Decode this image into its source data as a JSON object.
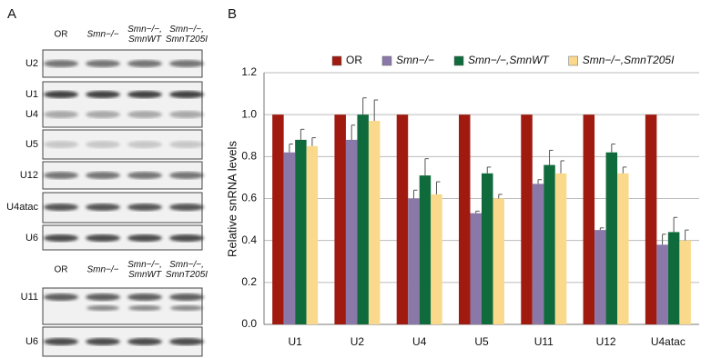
{
  "panel_a": {
    "label": "A",
    "blot_1": {
      "columns": [
        [
          "OR"
        ],
        [
          "Smn−/−"
        ],
        [
          "Smn−/−,",
          "SmnWT"
        ],
        [
          "Smn−/−,",
          "SmnT205I"
        ]
      ],
      "rows": [
        "U2",
        "U1",
        "U4",
        "U5",
        "U12",
        "U4atac",
        "U6"
      ]
    },
    "blot_2": {
      "columns": [
        [
          "OR"
        ],
        [
          "Smn−/−"
        ],
        [
          "Smn−/−,",
          "SmnWT"
        ],
        [
          "Smn−/−,",
          "SmnT205I"
        ]
      ],
      "rows": [
        "U11",
        "U6"
      ]
    }
  },
  "chart_data": {
    "type": "bar",
    "panel_label": "B",
    "y_label": "Relative snRNA levels",
    "categories": [
      "U1",
      "U2",
      "U4",
      "U5",
      "U11",
      "U12",
      "U4atac"
    ],
    "series": [
      {
        "name": "OR",
        "color": "#a01a10",
        "values": [
          1,
          1,
          1,
          1,
          1,
          1,
          1
        ]
      },
      {
        "name": "Smn−/−",
        "color": "#8a78a8",
        "values": [
          0.82,
          0.88,
          0.6,
          0.53,
          0.67,
          0.45,
          0.38
        ],
        "errors": [
          0.04,
          0.07,
          0.04,
          0.01,
          0.02,
          0.01,
          0.05
        ]
      },
      {
        "name": "Smn−/−,SmnWT",
        "color": "#0f6a3c",
        "values": [
          0.88,
          1,
          0.71,
          0.72,
          0.76,
          0.82,
          0.44
        ],
        "errors": [
          0.05,
          0.08,
          0.08,
          0.03,
          0.07,
          0.04,
          0.07
        ]
      },
      {
        "name": "Smn−/−,SmnT205I",
        "color": "#fbd98c",
        "values": [
          0.85,
          0.97,
          0.62,
          0.6,
          0.72,
          0.72,
          0.4
        ],
        "errors": [
          0.04,
          0.1,
          0.06,
          0.02,
          0.06,
          0.03,
          0.05
        ]
      }
    ],
    "ylim": [
      0,
      1.2
    ],
    "yticks": [
      {
        "value": 0,
        "label": "0.0"
      },
      0.2,
      0.4,
      0.6,
      0.8,
      {
        "value": 1,
        "label": "1.0"
      },
      1.2
    ],
    "grid": true
  }
}
